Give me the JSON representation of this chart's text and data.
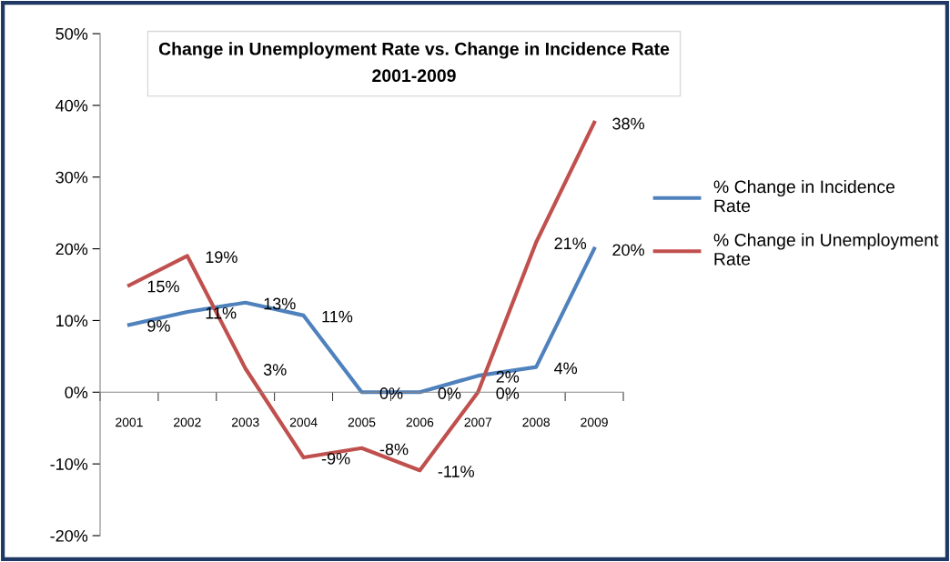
{
  "chart_data": {
    "type": "line",
    "title": "Change in Unemployment Rate vs. Change in Incidence Rate\n2001-2009",
    "categories": [
      "2001",
      "2002",
      "2003",
      "2004",
      "2005",
      "2006",
      "2007",
      "2008",
      "2009"
    ],
    "series": [
      {
        "name": "% Change in Incidence Rate",
        "color": "#4f81bd",
        "values": [
          9.4,
          11.2,
          12.5,
          10.7,
          0,
          0,
          2.3,
          3.5,
          20
        ],
        "value_labels": [
          "9%",
          "11%",
          "13%",
          "11%",
          "0%",
          "0%",
          "2%",
          "4%",
          "20%"
        ]
      },
      {
        "name": "% Change in Unemployment Rate",
        "color": "#c0504d",
        "values": [
          14.9,
          19,
          3.3,
          -9.1,
          -7.8,
          -10.9,
          0,
          20.9,
          37.6
        ],
        "value_labels": [
          "15%",
          "19%",
          "3%",
          "-9%",
          "-8%",
          "-11%",
          "0%",
          "21%",
          "38%"
        ]
      }
    ],
    "ylim": [
      -20,
      50
    ],
    "yticks": [
      {
        "value": -20,
        "label": "-20%"
      },
      {
        "value": -10,
        "label": "-10%"
      },
      {
        "value": 0,
        "label": "0%"
      },
      {
        "value": 10,
        "label": "10%"
      },
      {
        "value": 20,
        "label": "20%"
      },
      {
        "value": 30,
        "label": "30%"
      },
      {
        "value": 40,
        "label": "40%"
      },
      {
        "value": 50,
        "label": "50%"
      }
    ],
    "grid": false,
    "legend": "right",
    "marker": "none",
    "line_style": "solid"
  }
}
